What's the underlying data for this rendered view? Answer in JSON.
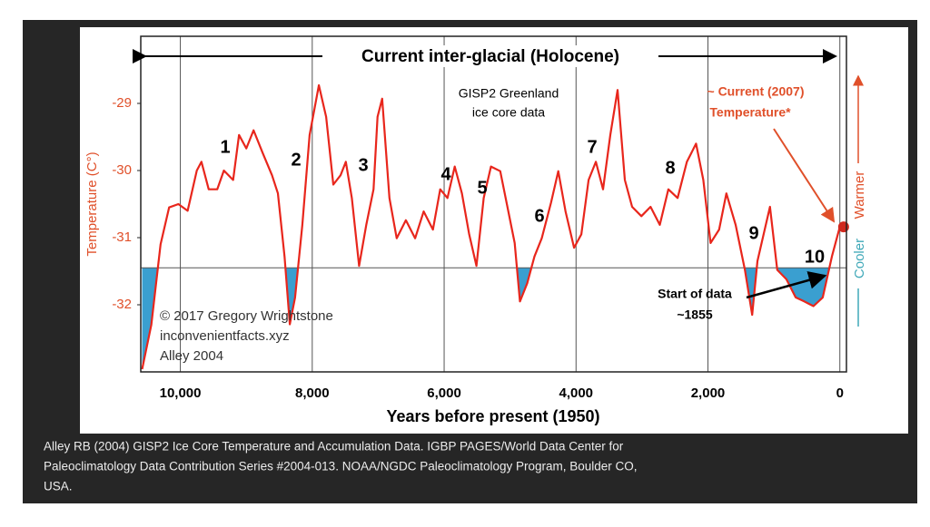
{
  "chart_data": {
    "type": "line",
    "title": "Current inter-glacial (Holocene)",
    "subtitle": [
      "GISP2 Greenland",
      "ice core data"
    ],
    "x_label": "Years before present (1950)",
    "y_label": "Temperature (C°)",
    "right_labels": {
      "warmer": "Warmer",
      "cooler": "Cooler"
    },
    "current_label": [
      "~ Current (2007)",
      "Temperature*"
    ],
    "start_label": [
      "Start of data",
      "~1855"
    ],
    "credits": [
      "© 2017 Gregory Wrightstone",
      "inconvenientfacts.xyz",
      "Alley 2004"
    ],
    "annotations": [
      "1",
      "2",
      "3",
      "4",
      "5",
      "6",
      "7",
      "8",
      "9",
      "10"
    ],
    "caption": [
      "Alley RB (2004)  GISP2 Ice Core Temperature and Accumulation Data. IGBP PAGES/World Data Center for",
      "Paleoclimatology Data Contribution Series #2004-013.  NOAA/NGDC Paleoclimatology Program, Boulder CO,",
      "USA."
    ],
    "x": [
      10580,
      10440,
      10300,
      10170,
      10030,
      9890,
      9750,
      9680,
      9570,
      9440,
      9340,
      9200,
      9110,
      9000,
      8890,
      8750,
      8610,
      8520,
      8420,
      8340,
      8260,
      8150,
      8040,
      7900,
      7790,
      7680,
      7570,
      7490,
      7400,
      7290,
      7180,
      7070,
      7010,
      6940,
      6830,
      6720,
      6580,
      6440,
      6310,
      6170,
      6060,
      5950,
      5840,
      5730,
      5620,
      5510,
      5400,
      5290,
      5150,
      5040,
      4930,
      4850,
      4740,
      4630,
      4520,
      4380,
      4270,
      4160,
      4030,
      3920,
      3810,
      3700,
      3590,
      3480,
      3370,
      3260,
      3150,
      3010,
      2870,
      2730,
      2600,
      2460,
      2320,
      2180,
      2070,
      1960,
      1830,
      1720,
      1580,
      1440,
      1330,
      1250,
      1140,
      1060,
      950,
      810,
      670,
      540,
      400,
      260,
      120,
      0
    ],
    "series": [
      {
        "name": "GISP2 temperature",
        "color": "#e8261c",
        "values": [
          -32.96,
          -32.3,
          -31.1,
          -30.55,
          -30.5,
          -30.6,
          -30.0,
          -29.87,
          -30.28,
          -30.28,
          -30.0,
          -30.14,
          -29.47,
          -29.67,
          -29.4,
          -29.74,
          -30.07,
          -30.34,
          -31.28,
          -32.29,
          -31.89,
          -30.81,
          -29.47,
          -28.73,
          -29.2,
          -30.21,
          -30.07,
          -29.87,
          -30.41,
          -31.42,
          -30.81,
          -30.28,
          -29.2,
          -28.93,
          -30.41,
          -31.01,
          -30.74,
          -31.01,
          -30.61,
          -30.88,
          -30.28,
          -30.41,
          -29.94,
          -30.34,
          -30.95,
          -31.42,
          -30.41,
          -29.94,
          -30.01,
          -30.54,
          -31.08,
          -31.95,
          -31.68,
          -31.28,
          -31.01,
          -30.48,
          -30.01,
          -30.61,
          -31.15,
          -30.95,
          -30.14,
          -29.87,
          -30.28,
          -29.47,
          -28.8,
          -30.14,
          -30.54,
          -30.68,
          -30.54,
          -30.81,
          -30.28,
          -30.41,
          -29.87,
          -29.6,
          -30.14,
          -31.08,
          -30.88,
          -30.34,
          -30.81,
          -31.48,
          -32.15,
          -31.35,
          -30.88,
          -30.54,
          -31.48,
          -31.62,
          -31.89,
          -31.95,
          -32.02,
          -31.89,
          -31.28,
          -30.84
        ]
      }
    ],
    "highlight": {
      "x": -57,
      "y": -30.84,
      "color": "#d0281e"
    },
    "reference_line": -31.45,
    "fill_color": "#3a9fd0",
    "xlim": [
      10600,
      -100
    ],
    "ylim": [
      -33,
      -28
    ],
    "xticks": [
      {
        "value": 10000,
        "label": "10,000"
      },
      {
        "value": 8000,
        "label": "8,000"
      },
      {
        "value": 6000,
        "label": "6,000"
      },
      {
        "value": 4000,
        "label": "4,000"
      },
      {
        "value": 2000,
        "label": "2,000"
      },
      0
    ],
    "yticks": [
      -29,
      -30,
      -31,
      -32
    ],
    "grid": "x"
  }
}
